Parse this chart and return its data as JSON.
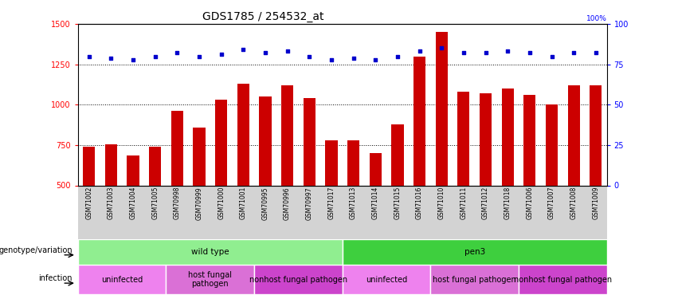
{
  "title": "GDS1785 / 254532_at",
  "samples": [
    "GSM71002",
    "GSM71003",
    "GSM71004",
    "GSM71005",
    "GSM70998",
    "GSM70999",
    "GSM71000",
    "GSM71001",
    "GSM70995",
    "GSM70996",
    "GSM70997",
    "GSM71017",
    "GSM71013",
    "GSM71014",
    "GSM71015",
    "GSM71016",
    "GSM71010",
    "GSM71011",
    "GSM71012",
    "GSM71018",
    "GSM71006",
    "GSM71007",
    "GSM71008",
    "GSM71009"
  ],
  "counts": [
    740,
    755,
    685,
    740,
    960,
    860,
    1030,
    1130,
    1050,
    1120,
    1040,
    780,
    780,
    700,
    880,
    1300,
    1450,
    1080,
    1070,
    1100,
    1060,
    1000,
    1120,
    1120
  ],
  "percentile_ranks": [
    80,
    79,
    78,
    80,
    82,
    80,
    81,
    84,
    82,
    83,
    80,
    78,
    79,
    78,
    80,
    83,
    85,
    82,
    82,
    83,
    82,
    80,
    82,
    82
  ],
  "bar_color": "#cc0000",
  "dot_color": "#0000cc",
  "ylim_left": [
    500,
    1500
  ],
  "ylim_right": [
    0,
    100
  ],
  "yticks_left": [
    500,
    750,
    1000,
    1250,
    1500
  ],
  "yticks_right": [
    0,
    25,
    50,
    75,
    100
  ],
  "plot_bg_color": "#ffffff",
  "tick_area_color": "#d3d3d3",
  "genotype_groups": [
    {
      "label": "wild type",
      "start": 0,
      "end": 11,
      "color": "#90ee90"
    },
    {
      "label": "pen3",
      "start": 12,
      "end": 23,
      "color": "#3ecf3e"
    }
  ],
  "infection_groups": [
    {
      "label": "uninfected",
      "start": 0,
      "end": 3,
      "color": "#ee82ee"
    },
    {
      "label": "host fungal\npathogen",
      "start": 4,
      "end": 7,
      "color": "#da70d6"
    },
    {
      "label": "nonhost fungal pathogen",
      "start": 8,
      "end": 11,
      "color": "#cc44cc"
    },
    {
      "label": "uninfected",
      "start": 12,
      "end": 15,
      "color": "#ee82ee"
    },
    {
      "label": "host fungal pathogen",
      "start": 16,
      "end": 19,
      "color": "#da70d6"
    },
    {
      "label": "nonhost fungal pathogen",
      "start": 20,
      "end": 23,
      "color": "#cc44cc"
    }
  ],
  "legend_count_color": "#cc0000",
  "legend_dot_color": "#0000cc",
  "title_fontsize": 10,
  "axis_label_fontsize": 7,
  "tick_fontsize": 7,
  "sample_fontsize": 5.5,
  "annotation_fontsize": 7.5,
  "legend_fontsize": 7
}
